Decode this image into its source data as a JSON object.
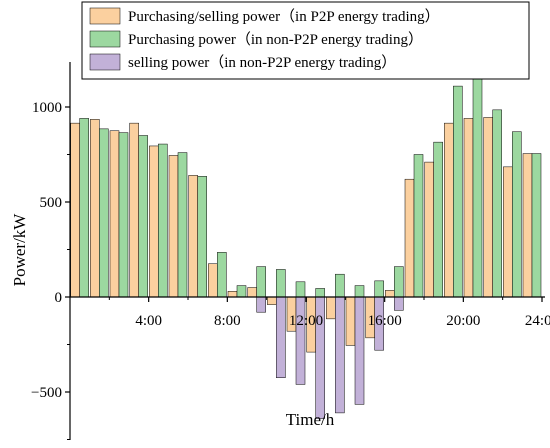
{
  "chart_data": {
    "type": "bar",
    "xlabel": "Time/h",
    "ylabel": "Power/kW",
    "x_ticks": [
      "4:00",
      "8:00",
      "12:00",
      "16:00",
      "20:00",
      "24:00"
    ],
    "y_ticks": [
      -500,
      0,
      500,
      1000
    ],
    "xlim": [
      0,
      24
    ],
    "ylim": [
      -780,
      1250
    ],
    "hours": [
      1,
      2,
      3,
      4,
      5,
      6,
      7,
      8,
      9,
      10,
      11,
      12,
      13,
      14,
      15,
      16,
      17,
      18,
      19,
      20,
      21,
      22,
      23,
      24
    ],
    "legend_position": "top",
    "series": [
      {
        "name": "Purchasing/selling power（in P2P energy trading）",
        "color": "#FBD09F",
        "values": [
          915,
          935,
          875,
          915,
          795,
          745,
          640,
          175,
          30,
          50,
          -40,
          -180,
          -290,
          -115,
          -255,
          -215,
          35,
          620,
          710,
          915,
          940,
          945,
          685,
          755
        ]
      },
      {
        "name": "Purchasing power（in non-P2P energy trading）",
        "color": "#9CD8A0",
        "values": [
          940,
          885,
          865,
          850,
          805,
          760,
          635,
          235,
          60,
          160,
          145,
          80,
          45,
          120,
          60,
          85,
          160,
          750,
          815,
          1110,
          1150,
          985,
          870,
          755
        ]
      },
      {
        "name": "selling power（in non-P2P energy trading）",
        "color": "#C2B1D8",
        "values": [
          0,
          0,
          0,
          0,
          0,
          0,
          0,
          0,
          0,
          -80,
          -425,
          -460,
          -640,
          -610,
          -565,
          -280,
          -70,
          0,
          0,
          0,
          0,
          0,
          0,
          0
        ]
      }
    ]
  }
}
